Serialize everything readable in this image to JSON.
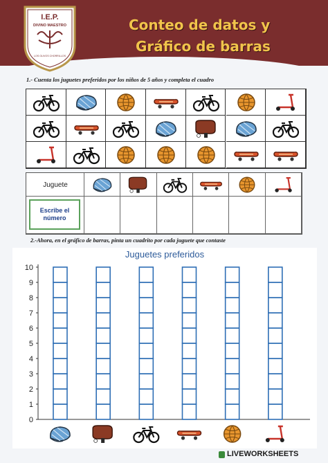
{
  "header": {
    "school_short": "I.E.P.",
    "school_name": "DIVINO MAESTRO",
    "school_motto": "LOS OLIVOS CHORRILLOS",
    "title_line1": "Conteo de datos y",
    "title_line2": "Gráfico de barras",
    "colors": {
      "header_bg": "#7a2d2d",
      "title": "#f1c44b"
    }
  },
  "section1": {
    "instruction": "1.- Cuenta los juguetes preferidos por los niños de 5 años y completa el cuadro",
    "grid": [
      [
        "bike-icon",
        "helmet-icon",
        "ball-icon",
        "skateboard-icon",
        "bike-icon",
        "ball-icon",
        "scooter-icon"
      ],
      [
        "bike-icon",
        "skateboard-icon",
        "bike-icon",
        "helmet-icon",
        "racket-icon",
        "helmet-icon",
        "bike-icon"
      ],
      [
        "scooter-icon",
        "bike-icon",
        "ball-icon",
        "ball-icon",
        "ball-icon",
        "skateboard-icon",
        "skateboard-icon"
      ]
    ]
  },
  "tally": {
    "header_label": "Juguete",
    "write_label_line1": "Escribe el",
    "write_label_line2": "número",
    "toys": [
      "helmet-icon",
      "racket-icon",
      "bike-icon",
      "skateboard-icon",
      "ball-icon",
      "scooter-icon"
    ]
  },
  "section2": {
    "instruction": "2.-Ahora, en el gráfico de barras, pinta un cuadrito por cada juguete que contaste"
  },
  "chart_data": {
    "type": "bar",
    "title": "Juguetes preferidos",
    "y_ticks": [
      "0",
      "1",
      "2",
      "3",
      "4",
      "5",
      "6",
      "7",
      "8",
      "9",
      "10"
    ],
    "ylim": [
      0,
      10
    ],
    "categories": [
      "helmet-icon",
      "racket-icon",
      "bike-icon",
      "skateboard-icon",
      "ball-icon",
      "scooter-icon"
    ],
    "values": [
      0,
      0,
      0,
      0,
      0,
      0
    ],
    "grid": true,
    "bar_outline_color": "#2e6eb5"
  },
  "watermark": "LIVEWORKSHEETS"
}
